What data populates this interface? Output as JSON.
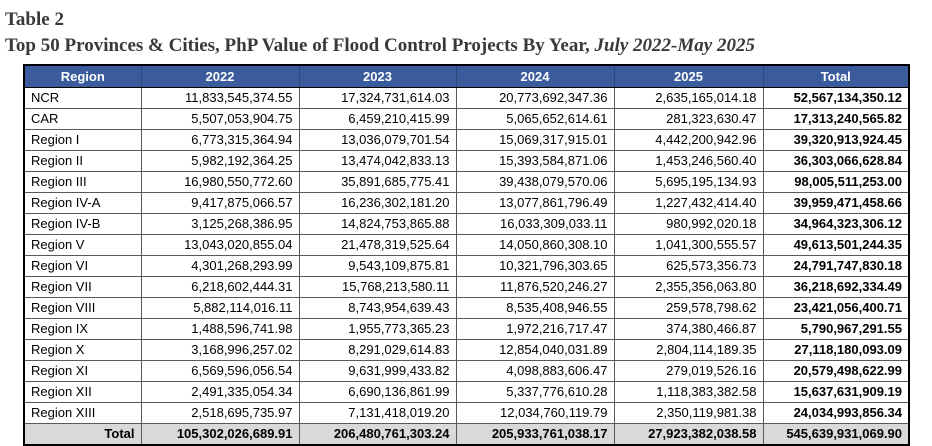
{
  "title": "Table 2",
  "subtitle": {
    "main": "Top 50 Provinces & Cities, PhP Value of Flood Control Projects By Year, ",
    "period": "July 2022-May 2025"
  },
  "colors": {
    "header_bg": "#3A5B9C",
    "header_text": "#FFFFFF",
    "total_row_bg": "#D9D9D9",
    "title_text": "#3B3838",
    "border": "#595959"
  },
  "chart_data": {
    "type": "table",
    "title": "Top 50 Provinces & Cities, PhP Value of Flood Control Projects By Year, July 2022-May 2025",
    "columns": [
      "Region",
      "2022",
      "2023",
      "2024",
      "2025",
      "Total"
    ],
    "rows": [
      [
        "NCR",
        "11,833,545,374.55",
        "17,324,731,614.03",
        "20,773,692,347.36",
        "2,635,165,014.18",
        "52,567,134,350.12"
      ],
      [
        "CAR",
        "5,507,053,904.75",
        "6,459,210,415.99",
        "5,065,652,614.61",
        "281,323,630.47",
        "17,313,240,565.82"
      ],
      [
        "Region I",
        "6,773,315,364.94",
        "13,036,079,701.54",
        "15,069,317,915.01",
        "4,442,200,942.96",
        "39,320,913,924.45"
      ],
      [
        "Region II",
        "5,982,192,364.25",
        "13,474,042,833.13",
        "15,393,584,871.06",
        "1,453,246,560.40",
        "36,303,066,628.84"
      ],
      [
        "Region III",
        "16,980,550,772.60",
        "35,891,685,775.41",
        "39,438,079,570.06",
        "5,695,195,134.93",
        "98,005,511,253.00"
      ],
      [
        "Region IV-A",
        "9,417,875,066.57",
        "16,236,302,181.20",
        "13,077,861,796.49",
        "1,227,432,414.40",
        "39,959,471,458.66"
      ],
      [
        "Region IV-B",
        "3,125,268,386.95",
        "14,824,753,865.88",
        "16,033,309,033.11",
        "980,992,020.18",
        "34,964,323,306.12"
      ],
      [
        "Region V",
        "13,043,020,855.04",
        "21,478,319,525.64",
        "14,050,860,308.10",
        "1,041,300,555.57",
        "49,613,501,244.35"
      ],
      [
        "Region VI",
        "4,301,268,293.99",
        "9,543,109,875.81",
        "10,321,796,303.65",
        "625,573,356.73",
        "24,791,747,830.18"
      ],
      [
        "Region VII",
        "6,218,602,444.31",
        "15,768,213,580.11",
        "11,876,520,246.27",
        "2,355,356,063.80",
        "36,218,692,334.49"
      ],
      [
        "Region VIII",
        "5,882,114,016.11",
        "8,743,954,639.43",
        "8,535,408,946.55",
        "259,578,798.62",
        "23,421,056,400.71"
      ],
      [
        "Region IX",
        "1,488,596,741.98",
        "1,955,773,365.23",
        "1,972,216,717.47",
        "374,380,466.87",
        "5,790,967,291.55"
      ],
      [
        "Region X",
        "3,168,996,257.02",
        "8,291,029,614.83",
        "12,854,040,031.89",
        "2,804,114,189.35",
        "27,118,180,093.09"
      ],
      [
        "Region XI",
        "6,569,596,056.54",
        "9,631,999,433.82",
        "4,098,883,606.47",
        "279,019,526.16",
        "20,579,498,622.99"
      ],
      [
        "Region XII",
        "2,491,335,054.34",
        "6,690,136,861.99",
        "5,337,776,610.28",
        "1,118,383,382.58",
        "15,637,631,909.19"
      ],
      [
        "Region XIII",
        "2,518,695,735.97",
        "7,131,418,019.20",
        "12,034,760,119.79",
        "2,350,119,981.38",
        "24,034,993,856.34"
      ]
    ],
    "total_row": [
      "Total",
      "105,302,026,689.91",
      "206,480,761,303.24",
      "205,933,761,038.17",
      "27,923,382,038.58",
      "545,639,931,069.90"
    ]
  }
}
